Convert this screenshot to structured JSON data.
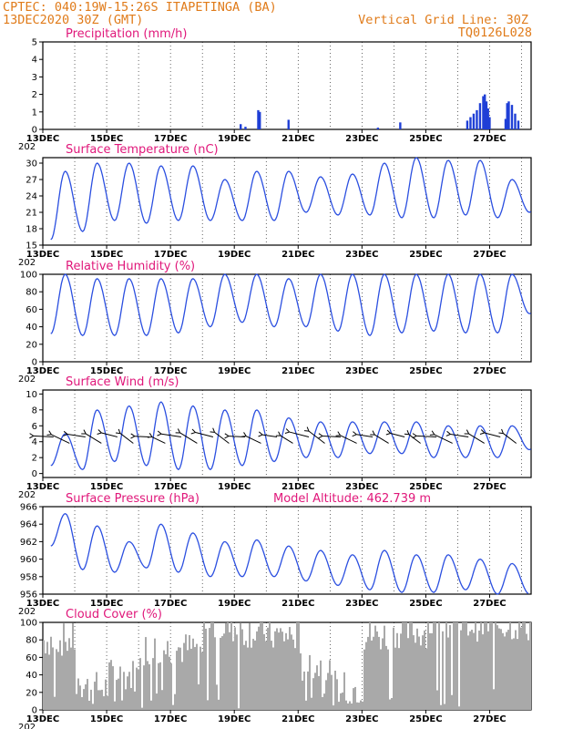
{
  "header": {
    "line1": "CPTEC:   040:19W-15:26S   ITAPETINGA (BA)",
    "line2": "13DEC2020 30Z (GMT)",
    "right1": "Vertical Grid Line: 30Z",
    "right2": "TQ0126L028"
  },
  "x_tick_labels": [
    "13DEC",
    "15DEC",
    "17DEC",
    "19DEC",
    "21DEC",
    "23DEC",
    "25DEC",
    "27DEC"
  ],
  "year_fragment": "202",
  "chart_data": [
    {
      "type": "bar",
      "title": "Precipitation (mm/h)",
      "ylim": [
        0,
        5
      ],
      "yticks": [
        0,
        1,
        2,
        3,
        4,
        5
      ],
      "color": "#1f3fd6",
      "grid": "dotted vertical lines at day marks",
      "x_range_days": [
        0,
        15.3
      ],
      "bars": [
        {
          "x": 6.2,
          "y": 0.3
        },
        {
          "x": 6.35,
          "y": 0.15
        },
        {
          "x": 6.75,
          "y": 1.1
        },
        {
          "x": 6.8,
          "y": 1.0
        },
        {
          "x": 7.7,
          "y": 0.55
        },
        {
          "x": 10.5,
          "y": 0.1
        },
        {
          "x": 11.2,
          "y": 0.4
        },
        {
          "x": 13.3,
          "y": 0.5
        },
        {
          "x": 13.4,
          "y": 0.7
        },
        {
          "x": 13.5,
          "y": 0.9
        },
        {
          "x": 13.6,
          "y": 1.1
        },
        {
          "x": 13.7,
          "y": 1.5
        },
        {
          "x": 13.8,
          "y": 1.9
        },
        {
          "x": 13.85,
          "y": 2.0
        },
        {
          "x": 13.9,
          "y": 1.6
        },
        {
          "x": 13.95,
          "y": 1.2
        },
        {
          "x": 14.0,
          "y": 0.7
        },
        {
          "x": 14.5,
          "y": 0.6
        },
        {
          "x": 14.55,
          "y": 1.5
        },
        {
          "x": 14.6,
          "y": 1.6
        },
        {
          "x": 14.7,
          "y": 1.4
        },
        {
          "x": 14.8,
          "y": 0.9
        },
        {
          "x": 14.9,
          "y": 0.5
        }
      ]
    },
    {
      "type": "line",
      "title": "Surface Temperature (nC)",
      "ylim": [
        15,
        31
      ],
      "yticks": [
        15,
        18,
        21,
        24,
        27,
        30
      ],
      "color": "#2b4fe0",
      "days_max": [
        28.5,
        30.0,
        30.0,
        29.5,
        29.5,
        27.0,
        28.5,
        28.5,
        27.5,
        28.0,
        30.0,
        31.0,
        30.5,
        30.5,
        27.0,
        27.0
      ],
      "days_min": [
        16.0,
        17.5,
        19.5,
        19.0,
        19.5,
        19.5,
        19.5,
        19.5,
        21.0,
        20.5,
        20.5,
        20.0,
        20.0,
        20.5,
        20.0,
        21.0
      ],
      "end_value": 22.5
    },
    {
      "type": "line",
      "title": "Relative Humidity (%)",
      "ylim": [
        0,
        100
      ],
      "yticks": [
        0,
        20,
        40,
        60,
        80,
        100
      ],
      "color": "#2b4fe0",
      "days_max": [
        100,
        95,
        95,
        95,
        95,
        100,
        100,
        95,
        100,
        100,
        100,
        100,
        100,
        100,
        100,
        80
      ],
      "days_min": [
        32,
        30,
        30,
        30,
        33,
        40,
        45,
        40,
        40,
        35,
        30,
        33,
        35,
        33,
        33,
        55
      ]
    },
    {
      "type": "line",
      "title": "Surface Wind (m/s)",
      "ylim": [
        -0.5,
        10.5
      ],
      "yticks": [
        0,
        2,
        4,
        6,
        8,
        10
      ],
      "color": "#2b4fe0",
      "days_max": [
        5.0,
        8.0,
        8.5,
        9.0,
        8.5,
        8.0,
        8.0,
        7.0,
        6.5,
        6.5,
        6.5,
        6.5,
        6.0,
        6.0,
        6.0,
        6.0
      ],
      "days_min": [
        1.0,
        0.5,
        1.5,
        1.0,
        0.5,
        0.5,
        1.0,
        1.5,
        2.0,
        2.0,
        2.5,
        2.5,
        2.0,
        2.0,
        2.0,
        3.0
      ],
      "arrow_direction": "from east to west"
    },
    {
      "type": "line",
      "title": "Surface Pressure (hPa)",
      "annotation": "Model Altitude: 462.739  m",
      "ylim": [
        956,
        966
      ],
      "yticks": [
        956,
        958,
        960,
        962,
        964,
        966
      ],
      "color": "#2b4fe0",
      "days_max": [
        965.2,
        963.8,
        962.0,
        964.0,
        963.0,
        962.0,
        962.2,
        961.5,
        961.0,
        960.5,
        961.0,
        960.5,
        960.5,
        960.0,
        959.5
      ],
      "days_min": [
        961.5,
        958.8,
        958.5,
        959.0,
        958.5,
        958.0,
        958.0,
        958.0,
        957.5,
        957.0,
        956.5,
        956.2,
        956.2,
        956.5,
        956.0
      ]
    },
    {
      "type": "bar",
      "title": "Cloud Cover (%)",
      "ylim": [
        0,
        100
      ],
      "yticks": [
        0,
        20,
        40,
        60,
        80,
        100
      ],
      "color": "#a9a9a9",
      "days_cover": [
        80,
        25,
        40,
        70,
        70,
        95,
        90,
        85,
        50,
        25,
        85,
        90,
        98,
        98,
        98,
        97
      ]
    }
  ]
}
